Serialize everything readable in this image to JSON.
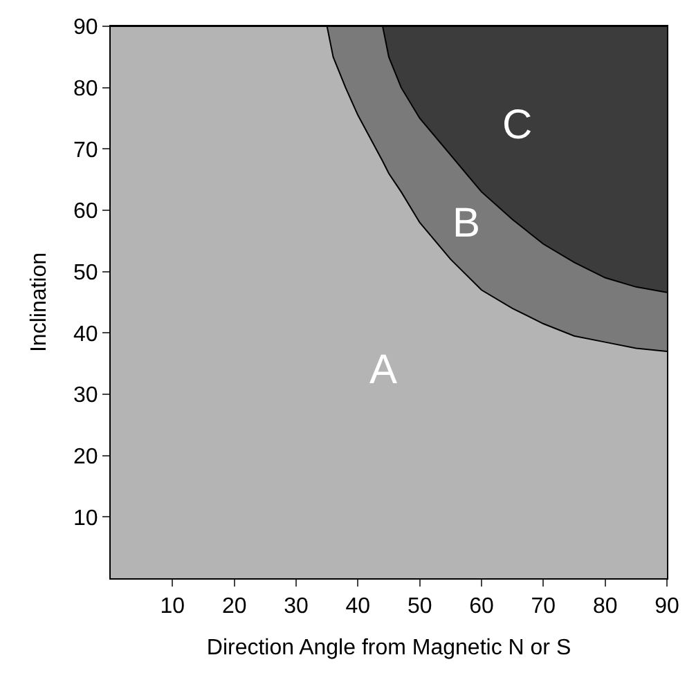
{
  "chart_data": {
    "type": "area",
    "stacked": true,
    "xlabel": "Direction Angle from Magnetic N or S",
    "ylabel": "Inclination",
    "xlim": [
      0,
      90
    ],
    "ylim": [
      0,
      90
    ],
    "xticks": [
      10,
      20,
      30,
      40,
      50,
      60,
      70,
      80,
      90
    ],
    "yticks": [
      10,
      20,
      30,
      40,
      50,
      60,
      70,
      80,
      90
    ],
    "x": [
      0,
      35,
      36,
      38,
      40,
      44,
      45,
      47,
      50,
      55,
      60,
      65,
      70,
      75,
      80,
      85,
      90
    ],
    "series": [
      {
        "name": "A",
        "color": "#b4b4b4",
        "values": [
          90,
          90,
          85,
          80,
          75.5,
          68,
          66,
          63,
          58,
          52,
          47,
          44,
          41.5,
          39.5,
          38.5,
          37.5,
          37
        ]
      },
      {
        "name": "B",
        "color": "#7a7a7a",
        "values": [
          0,
          0,
          5,
          10,
          14.5,
          22,
          19,
          17,
          17,
          17,
          16,
          14.5,
          13,
          12,
          10.5,
          10,
          9.6
        ]
      },
      {
        "name": "C",
        "color": "#3c3c3c",
        "values": [
          0,
          0,
          0,
          0,
          0,
          0,
          5,
          10,
          15,
          21,
          27,
          31.5,
          35.5,
          38.5,
          41,
          42.5,
          43.4
        ]
      }
    ]
  }
}
